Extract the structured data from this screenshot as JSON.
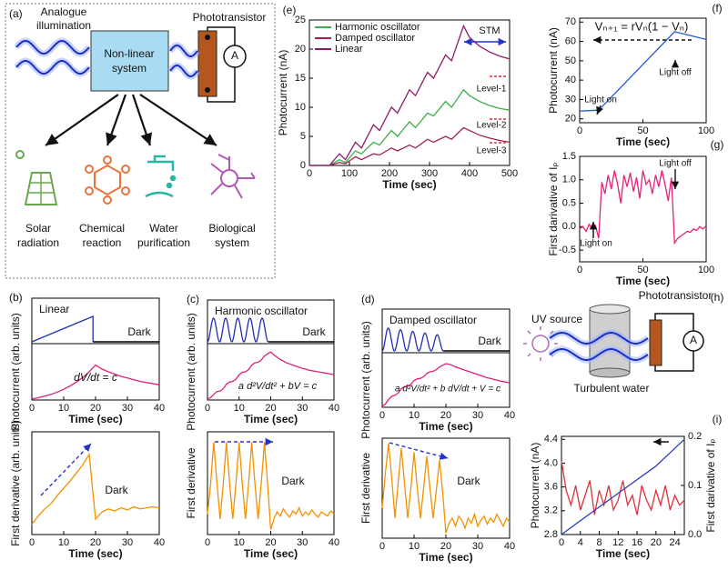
{
  "panel_a": {
    "label": "(a)",
    "source": [
      "Analogue",
      "illumination"
    ],
    "system": [
      "Non-linear",
      "system"
    ],
    "detector": "Phototransistor",
    "meter": "A",
    "applications": [
      [
        "Solar",
        "radiation"
      ],
      [
        "Chemical",
        "reaction"
      ],
      [
        "Water",
        "purification"
      ],
      [
        "Biological",
        "system"
      ]
    ]
  },
  "panel_h": {
    "label": "(h)",
    "source": "UV source",
    "detector": "Phototransistor",
    "meter": "A",
    "medium": "Turbulent water"
  },
  "schematics": [
    {
      "panel": "(b)",
      "title": "Linear",
      "state": "Dark"
    },
    {
      "panel": "(c)",
      "title": "Harmonic oscillator",
      "state": "Dark"
    },
    {
      "panel": "(d)",
      "title": "Damped oscillator",
      "state": "Dark"
    }
  ],
  "chart_data": [
    {
      "type": "line",
      "xlabel": "Time (sec)",
      "ylabel": "Photocurrent (arb. units)",
      "xlim": [
        0,
        40
      ],
      "ylim": [
        0,
        1
      ],
      "xticks": [
        0,
        10,
        20,
        30,
        40
      ],
      "x": [
        0,
        2,
        4,
        6,
        8,
        10,
        12,
        14,
        16,
        18,
        20,
        22,
        24,
        26,
        28,
        30,
        32,
        34,
        36,
        38,
        40
      ],
      "series": [
        {
          "color": "#e0207a",
          "values": [
            0.02,
            0.04,
            0.07,
            0.1,
            0.14,
            0.19,
            0.25,
            0.32,
            0.4,
            0.5,
            0.62,
            0.55,
            0.5,
            0.46,
            0.42,
            0.39,
            0.36,
            0.33,
            0.31,
            0.29,
            0.27
          ]
        }
      ],
      "annotations": [
        "dV/dt = c"
      ]
    },
    {
      "type": "line",
      "xlabel": "Time (sec)",
      "ylabel": "First derivative (arb. units)",
      "xlim": [
        0,
        40
      ],
      "ylim": [
        0,
        1
      ],
      "xticks": [
        0,
        10,
        20,
        30,
        40
      ],
      "x": [
        0,
        2,
        4,
        6,
        8,
        10,
        12,
        14,
        16,
        18,
        20,
        22,
        24,
        26,
        28,
        30,
        32,
        34,
        36,
        38,
        40
      ],
      "series": [
        {
          "color": "#f39200",
          "values": [
            0.1,
            0.18,
            0.25,
            0.3,
            0.38,
            0.45,
            0.52,
            0.6,
            0.68,
            0.78,
            0.15,
            0.22,
            0.25,
            0.23,
            0.26,
            0.24,
            0.27,
            0.25,
            0.26,
            0.27,
            0.26
          ]
        }
      ],
      "annotations": [
        "Dark"
      ]
    },
    {
      "type": "line",
      "xlabel": "Time (sec)",
      "ylabel": "Photocurrent (arb. units)",
      "xlim": [
        0,
        40
      ],
      "ylim": [
        0,
        1
      ],
      "xticks": [
        0,
        10,
        20,
        30,
        40
      ],
      "x": [
        0,
        1,
        2,
        3,
        4,
        5,
        6,
        7,
        8,
        9,
        10,
        11,
        12,
        13,
        14,
        15,
        16,
        17,
        18,
        19,
        20,
        21,
        22,
        23,
        24,
        25,
        26,
        27,
        28,
        29,
        30,
        31,
        32,
        33,
        34,
        35,
        36,
        37,
        38,
        39,
        40
      ],
      "series": [
        {
          "color": "#e0207a",
          "values": [
            0.02,
            0.04,
            0.1,
            0.15,
            0.16,
            0.2,
            0.28,
            0.32,
            0.33,
            0.37,
            0.45,
            0.49,
            0.5,
            0.54,
            0.62,
            0.66,
            0.67,
            0.71,
            0.78,
            0.82,
            0.85,
            0.8,
            0.76,
            0.72,
            0.69,
            0.66,
            0.64,
            0.62,
            0.6,
            0.58,
            0.56,
            0.55,
            0.53,
            0.52,
            0.51,
            0.5,
            0.49,
            0.48,
            0.47,
            0.46,
            0.45
          ]
        }
      ],
      "annotations": [
        "a d²V/dt² + bV = c"
      ]
    },
    {
      "type": "line",
      "xlabel": "Time (sec)",
      "ylabel": "First derivative",
      "xlim": [
        0,
        40
      ],
      "ylim": [
        0,
        1
      ],
      "xticks": [
        0,
        10,
        20,
        30,
        40
      ],
      "x": [
        0,
        1,
        2,
        3,
        4,
        5,
        6,
        7,
        8,
        9,
        10,
        11,
        12,
        13,
        14,
        15,
        16,
        17,
        18,
        19,
        20,
        21,
        22,
        23,
        24,
        25,
        26,
        27,
        28,
        29,
        30,
        31,
        32,
        33,
        34,
        35,
        36,
        37,
        38,
        39,
        40
      ],
      "series": [
        {
          "color": "#f39200",
          "values": [
            0.2,
            0.5,
            0.9,
            0.5,
            0.15,
            0.5,
            0.9,
            0.5,
            0.15,
            0.5,
            0.9,
            0.5,
            0.15,
            0.5,
            0.9,
            0.5,
            0.15,
            0.5,
            0.9,
            0.5,
            0.05,
            0.15,
            0.22,
            0.18,
            0.25,
            0.2,
            0.17,
            0.23,
            0.2,
            0.26,
            0.18,
            0.22,
            0.19,
            0.24,
            0.2,
            0.17,
            0.22,
            0.2,
            0.18,
            0.23,
            0.2
          ]
        }
      ],
      "annotations": [
        "Dark"
      ]
    },
    {
      "type": "line",
      "xlabel": "Time (sec)",
      "ylabel": "Photocurrent (arb. units)",
      "xlim": [
        0,
        40
      ],
      "ylim": [
        0,
        1
      ],
      "xticks": [
        0,
        10,
        20,
        30,
        40
      ],
      "x": [
        0,
        1,
        2,
        3,
        4,
        5,
        6,
        7,
        8,
        9,
        10,
        11,
        12,
        13,
        14,
        15,
        16,
        17,
        18,
        19,
        20,
        21,
        22,
        23,
        24,
        25,
        26,
        27,
        28,
        29,
        30,
        31,
        32,
        33,
        34,
        35,
        36,
        37,
        38,
        39,
        40
      ],
      "series": [
        {
          "color": "#e0207a",
          "values": [
            0.02,
            0.06,
            0.14,
            0.2,
            0.22,
            0.26,
            0.34,
            0.38,
            0.39,
            0.42,
            0.49,
            0.52,
            0.53,
            0.56,
            0.62,
            0.65,
            0.66,
            0.69,
            0.74,
            0.77,
            0.8,
            0.79,
            0.77,
            0.74,
            0.72,
            0.7,
            0.68,
            0.66,
            0.64,
            0.62,
            0.6,
            0.58,
            0.56,
            0.54,
            0.53,
            0.51,
            0.5,
            0.48,
            0.47,
            0.46,
            0.45
          ]
        }
      ],
      "annotations": [
        "a d²V/dt² + b dV/dt + V = c"
      ]
    },
    {
      "type": "line",
      "xlabel": "Time (sec)",
      "ylabel": "First derivative",
      "xlim": [
        0,
        40
      ],
      "ylim": [
        0,
        1
      ],
      "xticks": [
        0,
        10,
        20,
        30,
        40
      ],
      "x": [
        0,
        1,
        2,
        3,
        4,
        5,
        6,
        7,
        8,
        9,
        10,
        11,
        12,
        13,
        14,
        15,
        16,
        17,
        18,
        19,
        20,
        21,
        22,
        23,
        24,
        25,
        26,
        27,
        28,
        29,
        30,
        31,
        32,
        33,
        34,
        35,
        36,
        37,
        38,
        39,
        40
      ],
      "series": [
        {
          "color": "#f39200",
          "values": [
            0.3,
            0.65,
            0.95,
            0.6,
            0.2,
            0.55,
            0.9,
            0.55,
            0.2,
            0.5,
            0.86,
            0.5,
            0.2,
            0.5,
            0.82,
            0.5,
            0.2,
            0.48,
            0.78,
            0.45,
            0.05,
            0.15,
            0.2,
            0.12,
            0.22,
            0.18,
            0.1,
            0.2,
            0.15,
            0.24,
            0.12,
            0.18,
            0.22,
            0.14,
            0.2,
            0.16,
            0.24,
            0.18,
            0.12,
            0.2,
            0.16
          ]
        }
      ],
      "annotations": [
        "Dark"
      ]
    },
    {
      "type": "line",
      "panel": "(e)",
      "xlabel": "Time (sec)",
      "ylabel": "Photocurrent (nA)",
      "xlim": [
        0,
        500
      ],
      "ylim": [
        0,
        25
      ],
      "xticks": [
        0,
        100,
        200,
        300,
        400,
        500
      ],
      "yticks": [
        0,
        5,
        10,
        15,
        20,
        25
      ],
      "legend": "upper left",
      "x": [
        0,
        50,
        75,
        90,
        115,
        130,
        160,
        175,
        205,
        220,
        250,
        265,
        295,
        310,
        340,
        355,
        385,
        400,
        425,
        450,
        475,
        500
      ],
      "series": [
        {
          "name": "Harmonic oscillator",
          "color": "#3cae48",
          "values": [
            0,
            0,
            1,
            0.5,
            2.5,
            2,
            4,
            3.5,
            6,
            5,
            7.5,
            6.5,
            9,
            8.5,
            11,
            10,
            13,
            12,
            11,
            10.3,
            9.8,
            9.5
          ]
        },
        {
          "name": "Damped oscillator",
          "color": "#a3204f",
          "values": [
            0,
            0,
            0.5,
            0.3,
            1.5,
            1,
            2,
            1.8,
            3,
            2.5,
            3.5,
            3,
            4.5,
            4,
            5,
            4.5,
            6.5,
            6,
            5.2,
            4.7,
            4.3,
            4
          ]
        },
        {
          "name": "Linear",
          "color": "#8c1c68",
          "values": [
            0,
            0,
            2,
            1,
            4,
            3,
            7,
            6,
            10,
            9,
            13,
            12,
            16,
            15,
            19,
            18,
            24,
            22,
            20.5,
            19.5,
            18.8,
            18.3
          ]
        }
      ],
      "annotations": [
        "STM",
        "Level-1",
        "Level-2",
        "Level-3"
      ]
    },
    {
      "type": "line",
      "panel": "(f)",
      "xlabel": "Time (sec)",
      "ylabel": "Photocurrent (nA)",
      "xlim": [
        0,
        100
      ],
      "ylim": [
        18,
        72
      ],
      "xticks": [
        0,
        50,
        100
      ],
      "yticks": [
        20,
        30,
        40,
        50,
        60,
        70
      ],
      "x": [
        0,
        15,
        75,
        100
      ],
      "series": [
        {
          "color": "#2a5bd7",
          "values": [
            24,
            24.5,
            65,
            61
          ]
        }
      ],
      "annotations": [
        "Vₙ₊₁ = rVₙ(1 − Vₙ)",
        "Light on",
        "Light off"
      ]
    },
    {
      "type": "line",
      "panel": "(g)",
      "xlabel": "Time (sec)",
      "ylabel": "First darivative of Iₚ",
      "xlim": [
        0,
        100
      ],
      "ylim": [
        -0.75,
        1.5
      ],
      "xticks": [
        0,
        50,
        100
      ],
      "yticks": [
        -0.5,
        {
          "value": 0,
          "label": "0.0"
        },
        0.5,
        {
          "value": 1,
          "label": "1.0"
        },
        1.5
      ],
      "x": [
        0,
        2.5,
        5,
        7.5,
        10,
        12.5,
        15,
        17.5,
        20,
        22.5,
        25,
        27.5,
        30,
        32.5,
        35,
        37.5,
        40,
        42.5,
        45,
        47.5,
        50,
        52.5,
        55,
        57.5,
        60,
        62.5,
        65,
        67.5,
        70,
        72.5,
        75,
        77.5,
        80,
        82.5,
        85,
        87.5,
        90,
        92.5,
        95,
        97.5,
        100
      ],
      "series": [
        {
          "color": "#e8207a",
          "values": [
            -0.05,
            0,
            -0.1,
            0.05,
            -0.05,
            0.02,
            -0.25,
            0.95,
            0.7,
            1.1,
            0.8,
            1.2,
            0.9,
            0.5,
            1.1,
            0.85,
            1.15,
            0.75,
            1.05,
            0.6,
            1.2,
            0.9,
            1,
            0.7,
            1.1,
            0.85,
            1.2,
            0.9,
            0.55,
            1.05,
            -0.35,
            -0.25,
            -0.2,
            -0.15,
            -0.1,
            -0.12,
            -0.05,
            -0.08,
            0,
            -0.05,
            0.02
          ]
        }
      ],
      "annotations": [
        "Light off",
        "Light on"
      ]
    },
    {
      "type": "line",
      "panel": "(i)",
      "xlabel": "Time (sec)",
      "ylabel": "Photocurrent (nA)",
      "y2label": "First darivative of Iₚ",
      "xlim": [
        0,
        26
      ],
      "ylim": [
        2.8,
        4.45
      ],
      "y2lim": [
        0,
        0.2
      ],
      "xticks": [
        0,
        4,
        8,
        12,
        16,
        20,
        24
      ],
      "yticks": [
        2.8,
        3.2,
        3.6,
        {
          "value": 4,
          "label": "4.0"
        },
        4.4
      ],
      "y2ticks": [
        {
          "value": 0,
          "label": "0.0"
        },
        0.1,
        0.2
      ],
      "series": [
        {
          "color": "#e0303a",
          "axis": "y2",
          "x": [
            0,
            1,
            2,
            3,
            4,
            5,
            6,
            7,
            8,
            9,
            10,
            11,
            12,
            13,
            14,
            15,
            16,
            17,
            18,
            19,
            20,
            21,
            22,
            23,
            24,
            25,
            26
          ],
          "values": [
            0.15,
            0.09,
            0.06,
            0.1,
            0.05,
            0.08,
            0.11,
            0.04,
            0.09,
            0.06,
            0.1,
            0.05,
            0.07,
            0.11,
            0.06,
            0.08,
            0.04,
            0.1,
            0.07,
            0.05,
            0.09,
            0.06,
            0.1,
            0.05,
            0.08,
            0.06,
            0.07
          ]
        },
        {
          "color": "#2b3fbf",
          "x": [
            0,
            6,
            13,
            20,
            26
          ],
          "values": [
            2.8,
            3.15,
            3.55,
            3.95,
            4.4
          ]
        }
      ]
    }
  ]
}
